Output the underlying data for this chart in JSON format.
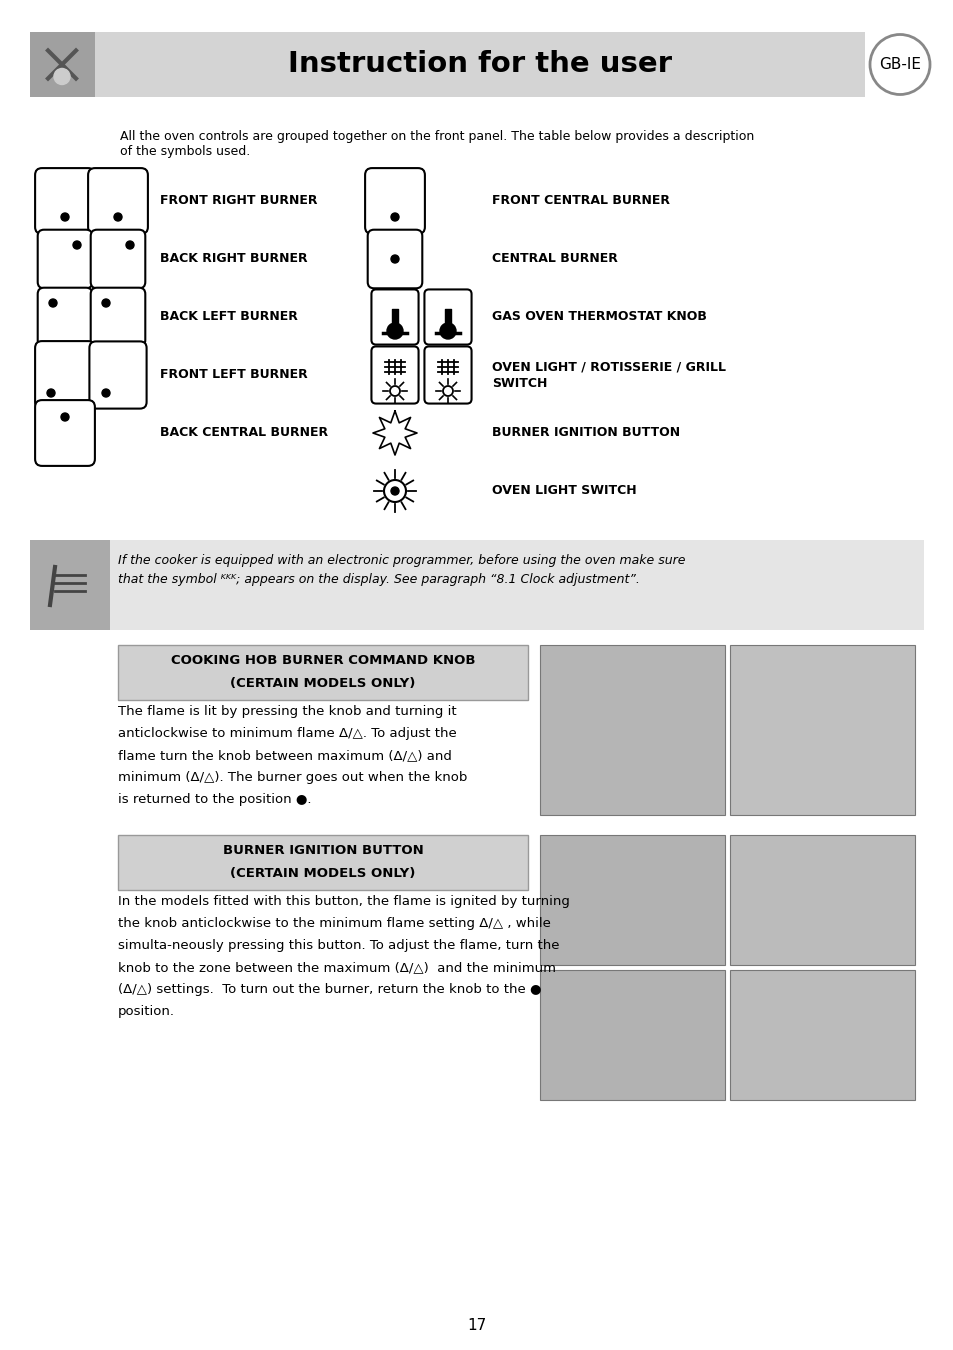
{
  "title": "Instruction for the user",
  "badge": "GB-IE",
  "bg_color": "#ffffff",
  "header_bg": "#d4d4d4",
  "note_bg": "#e5e5e5",
  "section_bg": "#d0d0d0",
  "page_number": "17"
}
